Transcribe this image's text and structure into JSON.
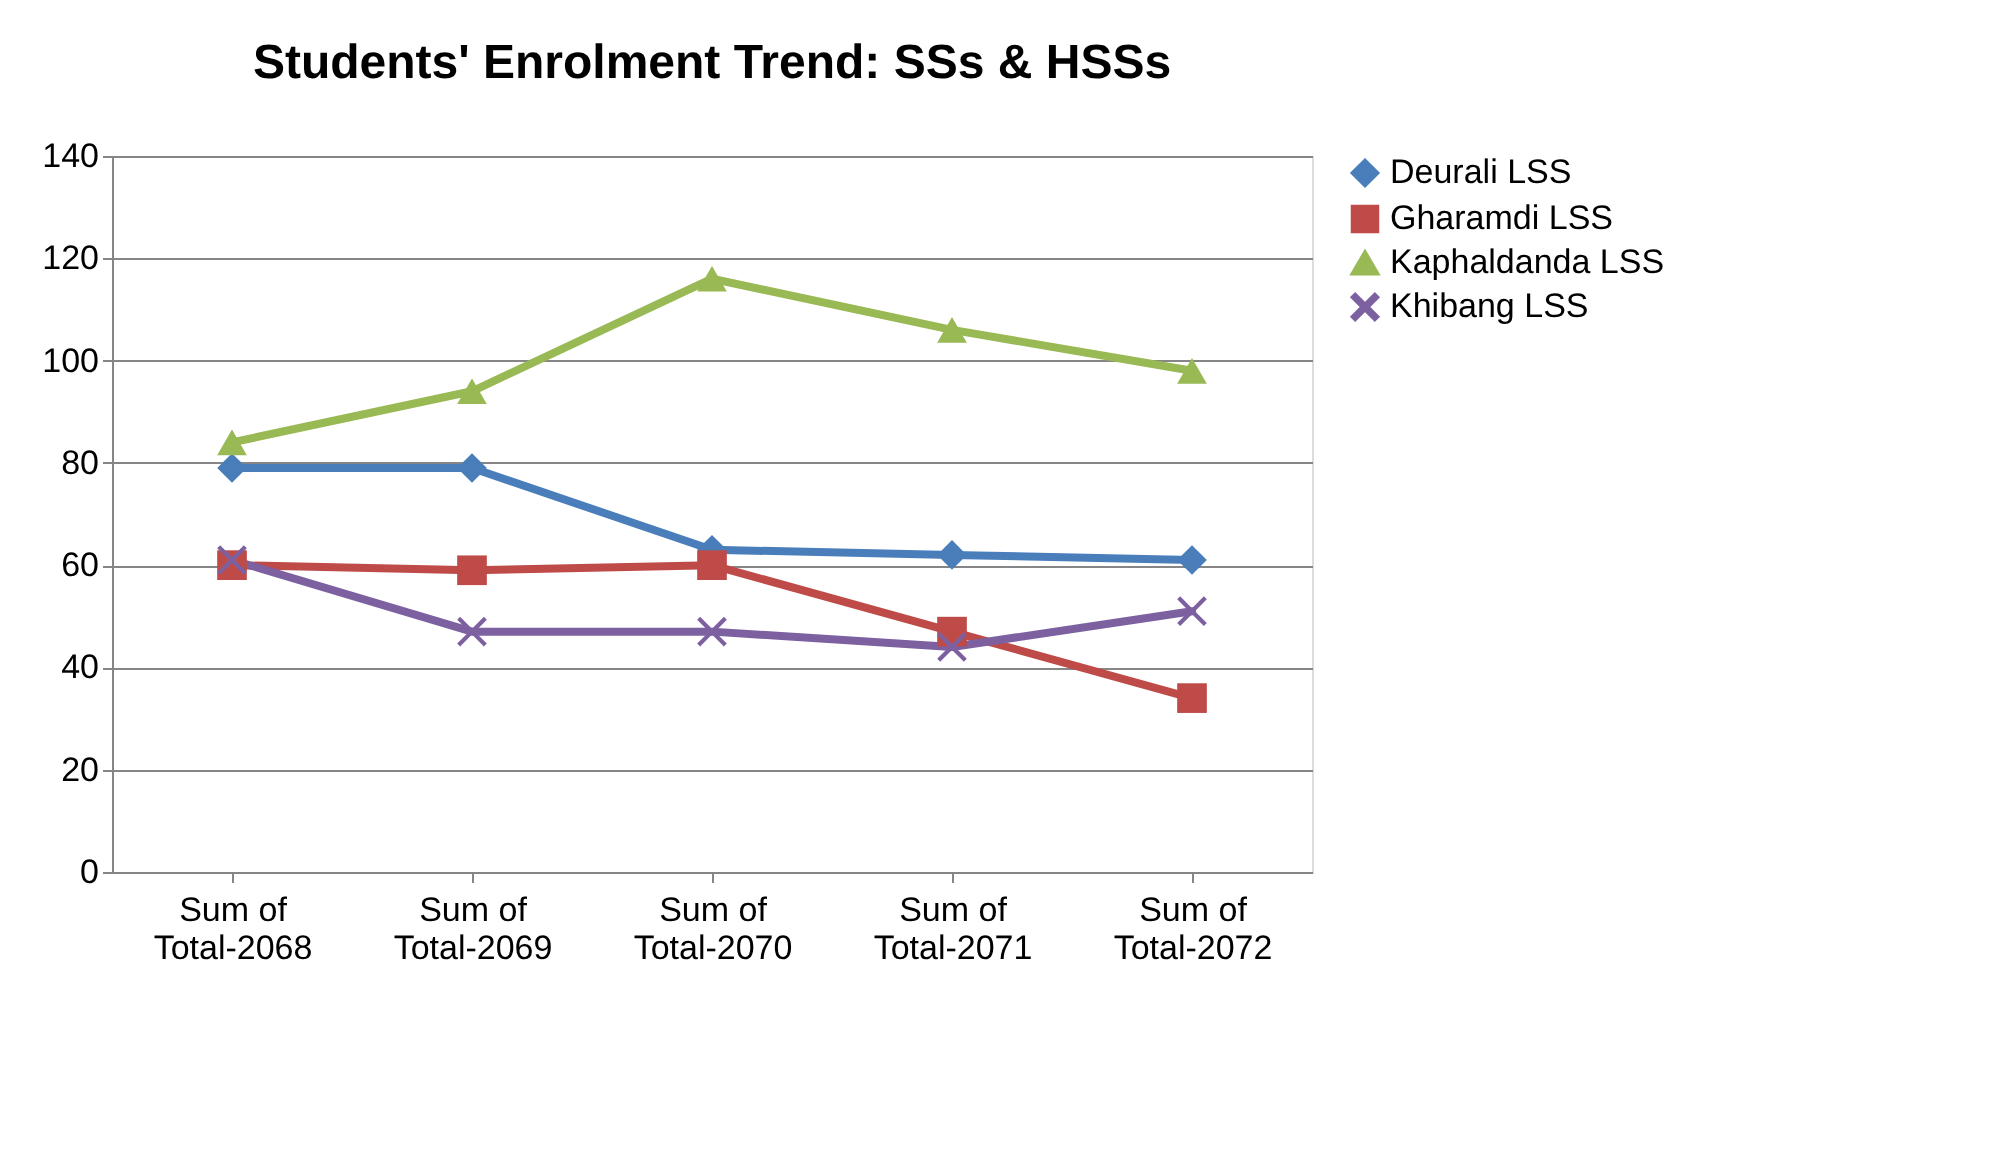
{
  "chart_data": {
    "type": "line",
    "title": "Students' Enrolment Trend: SSs & HSSs",
    "categories": [
      "Sum of Total-2068",
      "Sum of Total-2069",
      "Sum of Total-2070",
      "Sum of Total-2071",
      "Sum of Total-2072"
    ],
    "series": [
      {
        "name": "Deurali LSS",
        "color": "#4a7ebb",
        "marker": "diamond",
        "values": [
          79,
          79,
          63,
          62,
          61
        ]
      },
      {
        "name": "Gharamdi LSS",
        "color": "#be4b48",
        "marker": "square",
        "values": [
          60,
          59,
          60,
          47,
          34
        ]
      },
      {
        "name": "Kaphaldanda LSS",
        "color": "#98b954",
        "marker": "triangle",
        "values": [
          84,
          94,
          116,
          106,
          98
        ]
      },
      {
        "name": "Khibang LSS",
        "color": "#7d60a0",
        "marker": "cross",
        "values": [
          61,
          47,
          47,
          44,
          51
        ]
      }
    ],
    "ylim": [
      0,
      140
    ],
    "yticks": [
      0,
      20,
      40,
      60,
      80,
      100,
      120,
      140
    ],
    "grid": "y",
    "legend": "right",
    "line_style": "solid"
  }
}
